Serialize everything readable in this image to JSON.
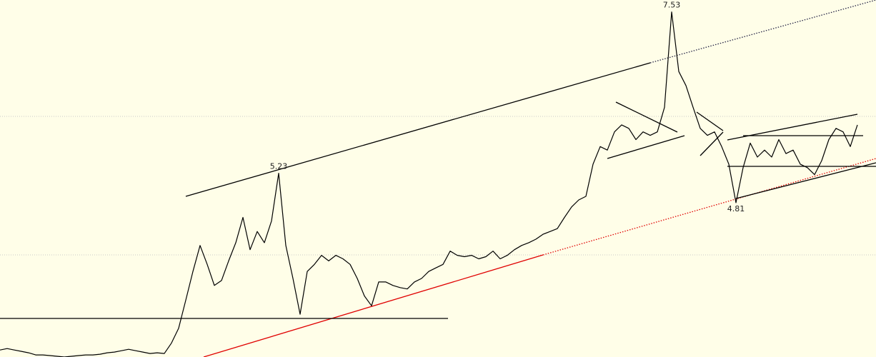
{
  "chart_data": {
    "type": "line",
    "color": "#000000",
    "values": [
      2.71,
      2.73,
      2.71,
      2.69,
      2.67,
      2.64,
      2.64,
      2.63,
      2.62,
      2.61,
      2.62,
      2.63,
      2.64,
      2.64,
      2.65,
      2.67,
      2.68,
      2.7,
      2.72,
      2.7,
      2.68,
      2.66,
      2.67,
      2.66,
      2.81,
      3.02,
      3.42,
      3.83,
      4.2,
      3.93,
      3.63,
      3.7,
      3.98,
      4.24,
      4.6,
      4.14,
      4.4,
      4.24,
      4.55,
      5.23,
      4.2,
      3.73,
      3.22,
      3.83,
      3.93,
      4.06,
      3.98,
      4.06,
      4.01,
      3.93,
      3.73,
      3.48,
      3.34,
      3.68,
      3.68,
      3.63,
      3.6,
      3.58,
      3.68,
      3.73,
      3.83,
      3.88,
      3.93,
      4.12,
      4.06,
      4.04,
      4.06,
      4.01,
      4.04,
      4.12,
      4.01,
      4.06,
      4.14,
      4.2,
      4.24,
      4.29,
      4.36,
      4.4,
      4.44,
      4.6,
      4.75,
      4.85,
      4.9,
      5.36,
      5.61,
      5.56,
      5.82,
      5.92,
      5.87,
      5.71,
      5.82,
      5.77,
      5.82,
      6.17,
      7.53,
      6.68,
      6.48,
      6.17,
      5.87,
      5.77,
      5.82,
      5.61,
      5.36,
      4.81,
      5.31,
      5.66,
      5.46,
      5.56,
      5.46,
      5.71,
      5.51,
      5.56,
      5.36,
      5.31,
      5.21,
      5.41,
      5.71,
      5.87,
      5.82,
      5.61,
      5.92
    ],
    "ylim": [
      2.61,
      7.7
    ],
    "annotations": [
      5.23,
      7.53,
      4.81
    ]
  }
}
